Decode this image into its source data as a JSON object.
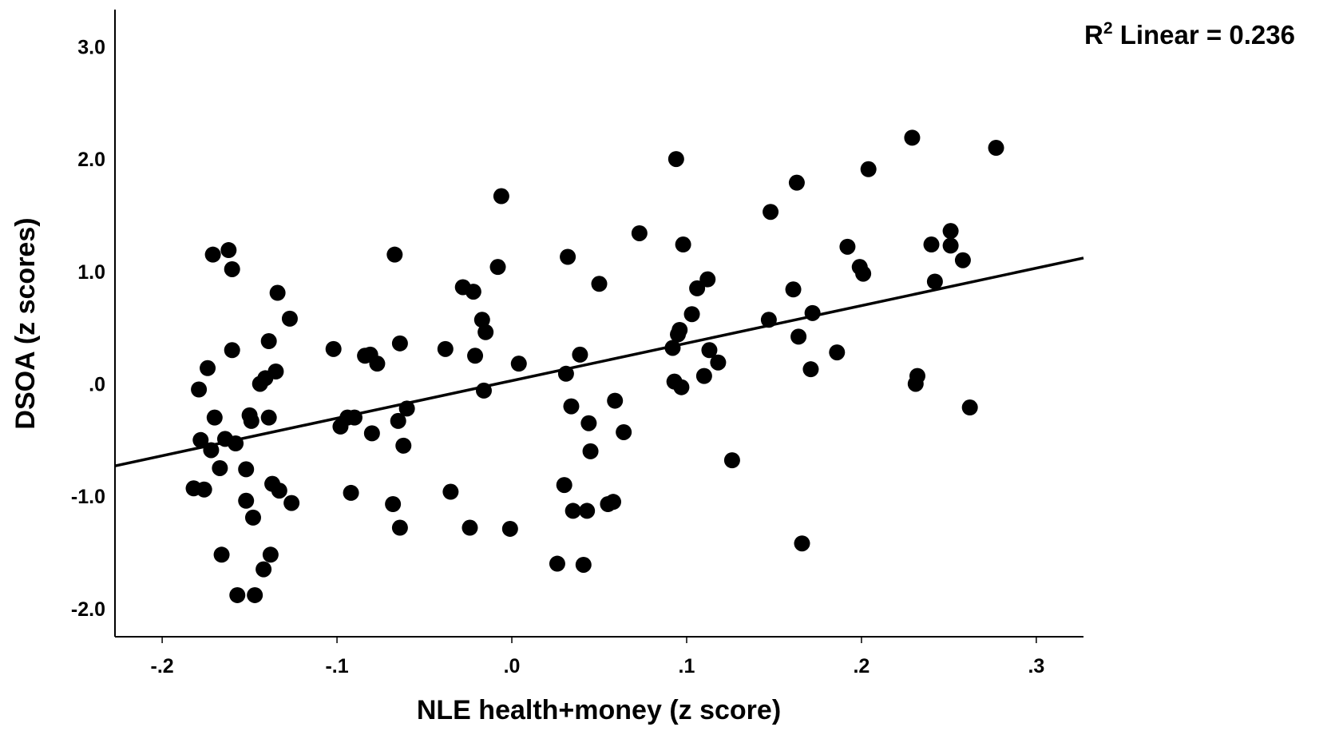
{
  "chart_data": {
    "type": "scatter",
    "xlabel": "NLE health+money (z score)",
    "ylabel": "DSOA (z scores)",
    "xlim": [
      -0.227,
      0.327
    ],
    "ylim": [
      -2.25,
      3.33
    ],
    "x_ticks": [
      {
        "value": -0.2,
        "label": "-.2"
      },
      {
        "value": -0.1,
        "label": "-.1"
      },
      {
        "value": 0.0,
        "label": ".0"
      },
      {
        "value": 0.1,
        "label": ".1"
      },
      {
        "value": 0.2,
        "label": ".2"
      },
      {
        "value": 0.3,
        "label": ".3"
      }
    ],
    "y_ticks": [
      {
        "value": 3.0,
        "label": "3.0"
      },
      {
        "value": 2.0,
        "label": "2.0"
      },
      {
        "value": 1.0,
        "label": "1.0"
      },
      {
        "value": 0.0,
        "label": ".0"
      },
      {
        "value": -1.0,
        "label": "-1.0"
      },
      {
        "value": -2.0,
        "label": "-2.0"
      }
    ],
    "fit": {
      "label": "Linear",
      "r2_prefix": "R",
      "r2_sup": "2",
      "r2_text": " Linear = 0.236",
      "points": [
        [
          -0.227,
          -0.73
        ],
        [
          0.327,
          1.12
        ]
      ]
    },
    "grid": false,
    "points": [
      [
        -0.182,
        -0.93
      ],
      [
        -0.179,
        -0.05
      ],
      [
        -0.178,
        -0.5
      ],
      [
        -0.176,
        -0.94
      ],
      [
        -0.174,
        0.14
      ],
      [
        -0.172,
        -0.59
      ],
      [
        -0.171,
        1.15
      ],
      [
        -0.17,
        -0.3
      ],
      [
        -0.167,
        -0.75
      ],
      [
        -0.166,
        -1.52
      ],
      [
        -0.164,
        -0.49
      ],
      [
        -0.162,
        1.19
      ],
      [
        -0.16,
        1.02
      ],
      [
        -0.16,
        0.3
      ],
      [
        -0.158,
        -0.53
      ],
      [
        -0.157,
        -1.88
      ],
      [
        -0.152,
        -0.76
      ],
      [
        -0.152,
        -1.04
      ],
      [
        -0.15,
        -0.28
      ],
      [
        -0.149,
        -0.33
      ],
      [
        -0.148,
        -1.19
      ],
      [
        -0.147,
        -1.88
      ],
      [
        -0.144,
        0.0
      ],
      [
        -0.142,
        -1.65
      ],
      [
        -0.141,
        0.05
      ],
      [
        -0.139,
        -0.3
      ],
      [
        -0.139,
        0.38
      ],
      [
        -0.138,
        -1.52
      ],
      [
        -0.137,
        -0.89
      ],
      [
        -0.135,
        0.11
      ],
      [
        -0.134,
        0.81
      ],
      [
        -0.133,
        -0.95
      ],
      [
        -0.127,
        0.58
      ],
      [
        -0.126,
        -1.06
      ],
      [
        -0.102,
        0.31
      ],
      [
        -0.098,
        -0.38
      ],
      [
        -0.094,
        -0.3
      ],
      [
        -0.092,
        -0.97
      ],
      [
        -0.09,
        -0.3
      ],
      [
        -0.084,
        0.25
      ],
      [
        -0.081,
        0.26
      ],
      [
        -0.08,
        -0.44
      ],
      [
        -0.077,
        0.18
      ],
      [
        -0.067,
        1.15
      ],
      [
        -0.068,
        -1.07
      ],
      [
        -0.065,
        -0.33
      ],
      [
        -0.064,
        0.36
      ],
      [
        -0.064,
        -1.28
      ],
      [
        -0.062,
        -0.55
      ],
      [
        -0.06,
        -0.22
      ],
      [
        -0.038,
        0.31
      ],
      [
        -0.035,
        -0.96
      ],
      [
        -0.028,
        0.86
      ],
      [
        -0.024,
        -1.28
      ],
      [
        -0.022,
        0.82
      ],
      [
        -0.021,
        0.25
      ],
      [
        -0.017,
        0.57
      ],
      [
        -0.016,
        -0.06
      ],
      [
        -0.015,
        0.46
      ],
      [
        -0.008,
        1.04
      ],
      [
        -0.006,
        1.67
      ],
      [
        -0.001,
        -1.29
      ],
      [
        0.004,
        0.18
      ],
      [
        0.026,
        -1.6
      ],
      [
        0.03,
        -0.9
      ],
      [
        0.031,
        0.09
      ],
      [
        0.032,
        1.13
      ],
      [
        0.034,
        -0.2
      ],
      [
        0.035,
        -1.13
      ],
      [
        0.039,
        0.26
      ],
      [
        0.041,
        -1.61
      ],
      [
        0.043,
        -1.13
      ],
      [
        0.044,
        -0.35
      ],
      [
        0.045,
        -0.6
      ],
      [
        0.05,
        0.89
      ],
      [
        0.055,
        -1.07
      ],
      [
        0.058,
        -1.05
      ],
      [
        0.059,
        -0.15
      ],
      [
        0.064,
        -0.43
      ],
      [
        0.073,
        1.34
      ],
      [
        0.092,
        0.32
      ],
      [
        0.093,
        0.02
      ],
      [
        0.094,
        2.0
      ],
      [
        0.095,
        0.44
      ],
      [
        0.096,
        0.48
      ],
      [
        0.097,
        -0.03
      ],
      [
        0.098,
        1.24
      ],
      [
        0.103,
        0.62
      ],
      [
        0.106,
        0.85
      ],
      [
        0.11,
        0.07
      ],
      [
        0.112,
        0.93
      ],
      [
        0.113,
        0.3
      ],
      [
        0.118,
        0.19
      ],
      [
        0.126,
        -0.68
      ],
      [
        0.147,
        0.57
      ],
      [
        0.148,
        1.53
      ],
      [
        0.161,
        0.84
      ],
      [
        0.163,
        1.79
      ],
      [
        0.164,
        0.42
      ],
      [
        0.166,
        -1.42
      ],
      [
        0.171,
        0.13
      ],
      [
        0.172,
        0.63
      ],
      [
        0.186,
        0.28
      ],
      [
        0.192,
        1.22
      ],
      [
        0.199,
        1.04
      ],
      [
        0.201,
        0.98
      ],
      [
        0.204,
        1.91
      ],
      [
        0.229,
        2.19
      ],
      [
        0.231,
        0.0
      ],
      [
        0.232,
        0.07
      ],
      [
        0.24,
        1.24
      ],
      [
        0.242,
        0.91
      ],
      [
        0.251,
        1.36
      ],
      [
        0.251,
        1.23
      ],
      [
        0.258,
        1.1
      ],
      [
        0.262,
        -0.21
      ],
      [
        0.277,
        2.1
      ]
    ]
  }
}
